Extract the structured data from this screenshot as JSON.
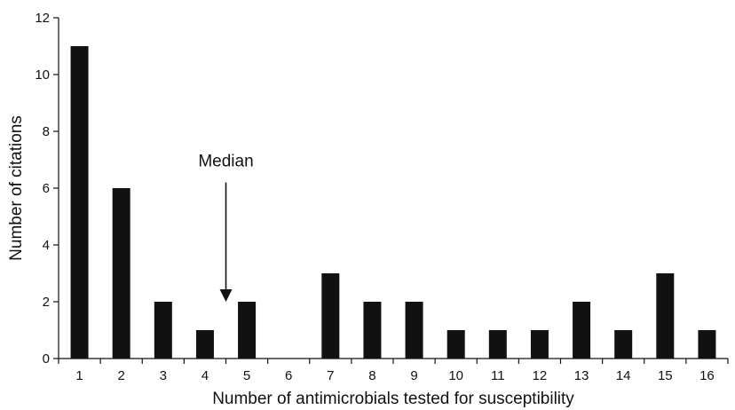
{
  "chart_data": {
    "type": "bar",
    "categories": [
      "1",
      "2",
      "3",
      "4",
      "5",
      "6",
      "7",
      "8",
      "9",
      "10",
      "11",
      "12",
      "13",
      "14",
      "15",
      "16"
    ],
    "values": [
      11,
      6,
      2,
      1,
      2,
      0,
      3,
      2,
      2,
      1,
      1,
      1,
      2,
      1,
      3,
      1
    ],
    "xlabel": "Number of antimicrobials tested for susceptibility",
    "ylabel": "Number of citations",
    "ylim": [
      0,
      12
    ],
    "yticks": [
      0,
      2,
      4,
      6,
      8,
      10,
      12
    ],
    "grid": false,
    "legend": "none",
    "bar_color": "#111111",
    "annotations": [
      {
        "text": "Median",
        "x": 4.5,
        "arrow_from_y": 6.2,
        "arrow_to_y": 2.0
      }
    ]
  }
}
